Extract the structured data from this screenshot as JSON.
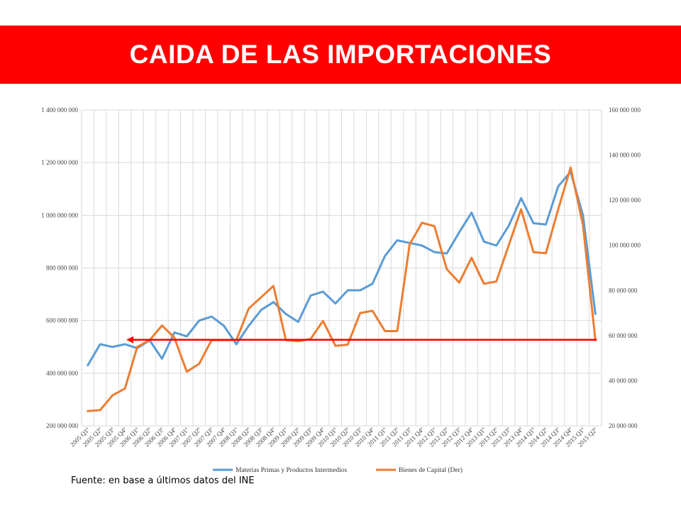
{
  "slide": {
    "title": "CAIDA DE LAS IMPORTACIONES",
    "source": "Fuente: en base a últimos datos del INE"
  },
  "colors": {
    "banner": "#ff0000",
    "series1": "#5b9bd5",
    "series2": "#ed7d31",
    "reference_line": "#ff0000"
  },
  "chart_data": {
    "type": "line",
    "title": "",
    "grid": true,
    "legend_position": "bottom",
    "x": [
      "2005 Q1º",
      "2005 Q2º",
      "2005 Q3º",
      "2005 Q4º",
      "2006 Q1º",
      "2006 Q2º",
      "2006 Q3º",
      "2006 Q4º",
      "2007 Q1º",
      "2007 Q2º",
      "2007 Q3º",
      "2007 Q4º",
      "2008 Q1º",
      "2008 Q2º",
      "2008 Q3º",
      "2008 Q4º",
      "2009 Q1º",
      "2009 Q2º",
      "2009 Q3º",
      "2009 Q4º",
      "2010 Q1º",
      "2010 Q2º",
      "2010 Q3º",
      "2010 Q4º",
      "2011 Q1º",
      "2011 Q2º",
      "2011 Q3º",
      "2011 Q4º",
      "2012 Q1º",
      "2012 Q2º",
      "2012 Q3º",
      "2012 Q4º",
      "2013 Q1º",
      "2013 Q2º",
      "2013 Q3º",
      "2013 Q4º",
      "2014 Q1º",
      "2014 Q2º",
      "2014 Q3º",
      "2014 Q4º",
      "2015 Q1º",
      "2015 Q2º"
    ],
    "y_left": {
      "ylim": [
        200000000,
        1400000000
      ],
      "ticks": [
        "200 000 000",
        "400 000 000",
        "600 000 000",
        "800 000 000",
        "1 000 000 000",
        "1 200 000 000",
        "1 400 000 000"
      ]
    },
    "y_right": {
      "ylim": [
        20000000,
        160000000
      ],
      "ticks": [
        "20 000 000",
        "40 000 000",
        "60 000 000",
        "80 000 000",
        "100 000 000",
        "120 000 000",
        "140 000 000",
        "160 000 000"
      ]
    },
    "series": [
      {
        "name": "Materias Primas y Productos Intermedios",
        "axis": "left",
        "values": [
          430000000,
          510000000,
          500000000,
          510000000,
          495000000,
          525000000,
          455000000,
          555000000,
          540000000,
          600000000,
          615000000,
          580000000,
          510000000,
          580000000,
          640000000,
          670000000,
          625000000,
          595000000,
          695000000,
          710000000,
          665000000,
          715000000,
          715000000,
          740000000,
          845000000,
          905000000,
          895000000,
          885000000,
          860000000,
          855000000,
          935000000,
          1010000000,
          900000000,
          885000000,
          960000000,
          1065000000,
          970000000,
          965000000,
          1110000000,
          1165000000,
          1000000000,
          625000000
        ]
      },
      {
        "name": "Bienes de Capital (Der)",
        "axis": "right",
        "values": [
          26500000,
          27000000,
          33500000,
          36500000,
          55000000,
          58000000,
          64500000,
          59000000,
          44000000,
          47500000,
          58000000,
          58000000,
          58000000,
          72000000,
          77000000,
          82000000,
          58000000,
          57500000,
          58500000,
          66500000,
          55500000,
          56000000,
          70000000,
          71000000,
          62000000,
          62000000,
          100500000,
          110000000,
          108500000,
          89500000,
          83500000,
          94500000,
          83000000,
          84000000,
          100000000,
          116000000,
          97000000,
          96500000,
          116000000,
          134500000,
          109000000,
          58000000
        ]
      }
    ],
    "annotations": [
      {
        "type": "arrow",
        "axis": "left",
        "y": 527000000,
        "from_index": 41,
        "to_index": 3
      }
    ]
  }
}
